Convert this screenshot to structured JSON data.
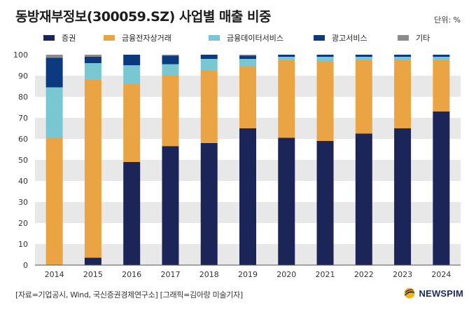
{
  "header": {
    "title": "동방재부정보(300059.SZ) 사업별 매출 비중",
    "unit": "단위: %"
  },
  "footer": {
    "source": "[자료=기업공시, Wind, 국신증권경제연구소] [그래픽=김아랑 미술기자]",
    "brand": "NEWSPIM"
  },
  "colors": {
    "securities": "#1c2557",
    "financial_ecommerce": "#eba444",
    "financial_data": "#78c7d3",
    "advertising": "#0b3a7e",
    "other": "#8c8c8c",
    "band": "#e8e8e8"
  },
  "chart_data": {
    "type": "bar",
    "stacked": true,
    "categories": [
      "2014",
      "2015",
      "2016",
      "2017",
      "2018",
      "2019",
      "2020",
      "2021",
      "2022",
      "2023",
      "2024"
    ],
    "ylim": [
      0,
      100
    ],
    "yticks": [
      0,
      10,
      20,
      30,
      40,
      50,
      60,
      70,
      80,
      90,
      100
    ],
    "grid": "alternating-bands",
    "legend_position": "top",
    "series": [
      {
        "name": "증권",
        "color": "#1c2557",
        "values": [
          0,
          3.5,
          49,
          56.5,
          58,
          65,
          60.5,
          59,
          62.5,
          65,
          73
        ]
      },
      {
        "name": "금융전자상거래",
        "color": "#eba444",
        "values": [
          60.5,
          84.5,
          37,
          33.5,
          34.5,
          29.5,
          37,
          38,
          35,
          32.5,
          24.5
        ]
      },
      {
        "name": "금융데이터서비스",
        "color": "#78c7d3",
        "values": [
          24,
          8,
          9,
          5.5,
          5.5,
          3.5,
          1.5,
          2,
          1.5,
          1.5,
          1.5
        ]
      },
      {
        "name": "광고서비스",
        "color": "#0b3a7e",
        "values": [
          14,
          3,
          5,
          4,
          2,
          1.5,
          1,
          1,
          1,
          1,
          1
        ]
      },
      {
        "name": "기타",
        "color": "#8c8c8c",
        "values": [
          1.5,
          1,
          0,
          0.5,
          0,
          0.5,
          0,
          0,
          0,
          0,
          0
        ]
      }
    ]
  }
}
